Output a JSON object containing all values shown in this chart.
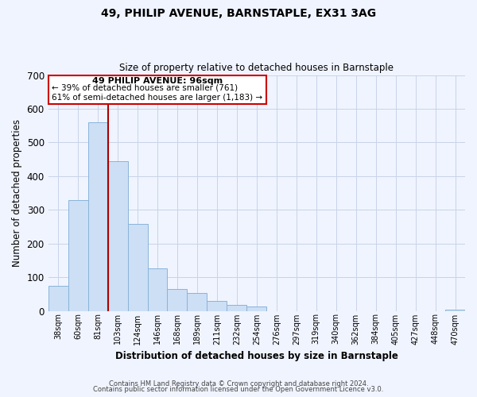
{
  "title": "49, PHILIP AVENUE, BARNSTAPLE, EX31 3AG",
  "subtitle": "Size of property relative to detached houses in Barnstaple",
  "xlabel": "Distribution of detached houses by size in Barnstaple",
  "ylabel": "Number of detached properties",
  "bar_labels": [
    "38sqm",
    "60sqm",
    "81sqm",
    "103sqm",
    "124sqm",
    "146sqm",
    "168sqm",
    "189sqm",
    "211sqm",
    "232sqm",
    "254sqm",
    "276sqm",
    "297sqm",
    "319sqm",
    "340sqm",
    "362sqm",
    "384sqm",
    "405sqm",
    "427sqm",
    "448sqm",
    "470sqm"
  ],
  "bar_values": [
    75,
    330,
    560,
    445,
    258,
    125,
    65,
    52,
    30,
    17,
    13,
    0,
    0,
    0,
    0,
    0,
    0,
    0,
    0,
    0,
    3
  ],
  "bar_color": "#ccdff5",
  "bar_edge_color": "#8ab4d8",
  "vline_color": "#aa0000",
  "ylim": [
    0,
    700
  ],
  "yticks": [
    0,
    100,
    200,
    300,
    400,
    500,
    600,
    700
  ],
  "annotation_title": "49 PHILIP AVENUE: 96sqm",
  "annotation_line1": "← 39% of detached houses are smaller (761)",
  "annotation_line2": "61% of semi-detached houses are larger (1,183) →",
  "footnote1": "Contains HM Land Registry data © Crown copyright and database right 2024.",
  "footnote2": "Contains public sector information licensed under the Open Government Licence v3.0.",
  "bg_color": "#f0f4ff",
  "grid_color": "#c8d4e8"
}
